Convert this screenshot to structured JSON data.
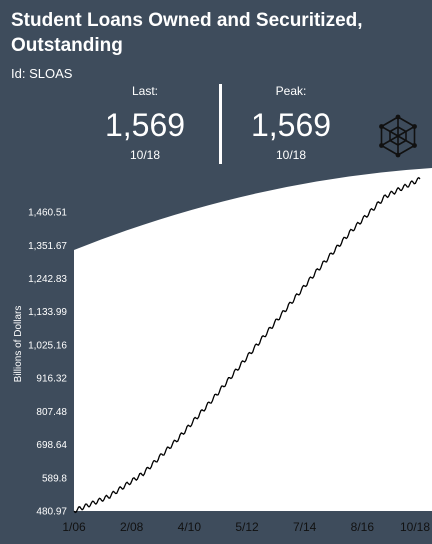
{
  "header": {
    "title_line1": "Student Loans Owned and Securitized,",
    "title_line2": "Outstanding",
    "series_id": "Id: SLOAS"
  },
  "stats": {
    "last": {
      "label": "Last:",
      "value": "1,569",
      "date": "10/18"
    },
    "peak": {
      "label": "Peak:",
      "value": "1,569",
      "date": "10/18"
    }
  },
  "logo": {
    "icon": "hexagon-cube-logo-icon"
  },
  "colors": {
    "background": "#3e4c5c",
    "chart_background": "#ffffff",
    "line": "#000000",
    "text": "#ffffff"
  },
  "chart_data": {
    "type": "line",
    "ylabel": "Billions of Dollars",
    "xlabel": "",
    "x_ticks": [
      "1/06",
      "2/08",
      "4/10",
      "5/12",
      "7/14",
      "8/16",
      "10/18"
    ],
    "y_ticks": [
      "480.97",
      "589.8",
      "698.64",
      "807.48",
      "916.32",
      "1,025.16",
      "1,133.99",
      "1,242.83",
      "1,351.67",
      "1,460.51"
    ],
    "ylim": [
      480.97,
      1569
    ],
    "xlim": [
      "1/06",
      "10/18"
    ],
    "grid": false,
    "legend": "none",
    "series": [
      {
        "values": [
          481,
          528,
          604,
          717,
          846,
          985,
          1125,
          1265,
          1397,
          1512,
          1569
        ]
      }
    ]
  }
}
